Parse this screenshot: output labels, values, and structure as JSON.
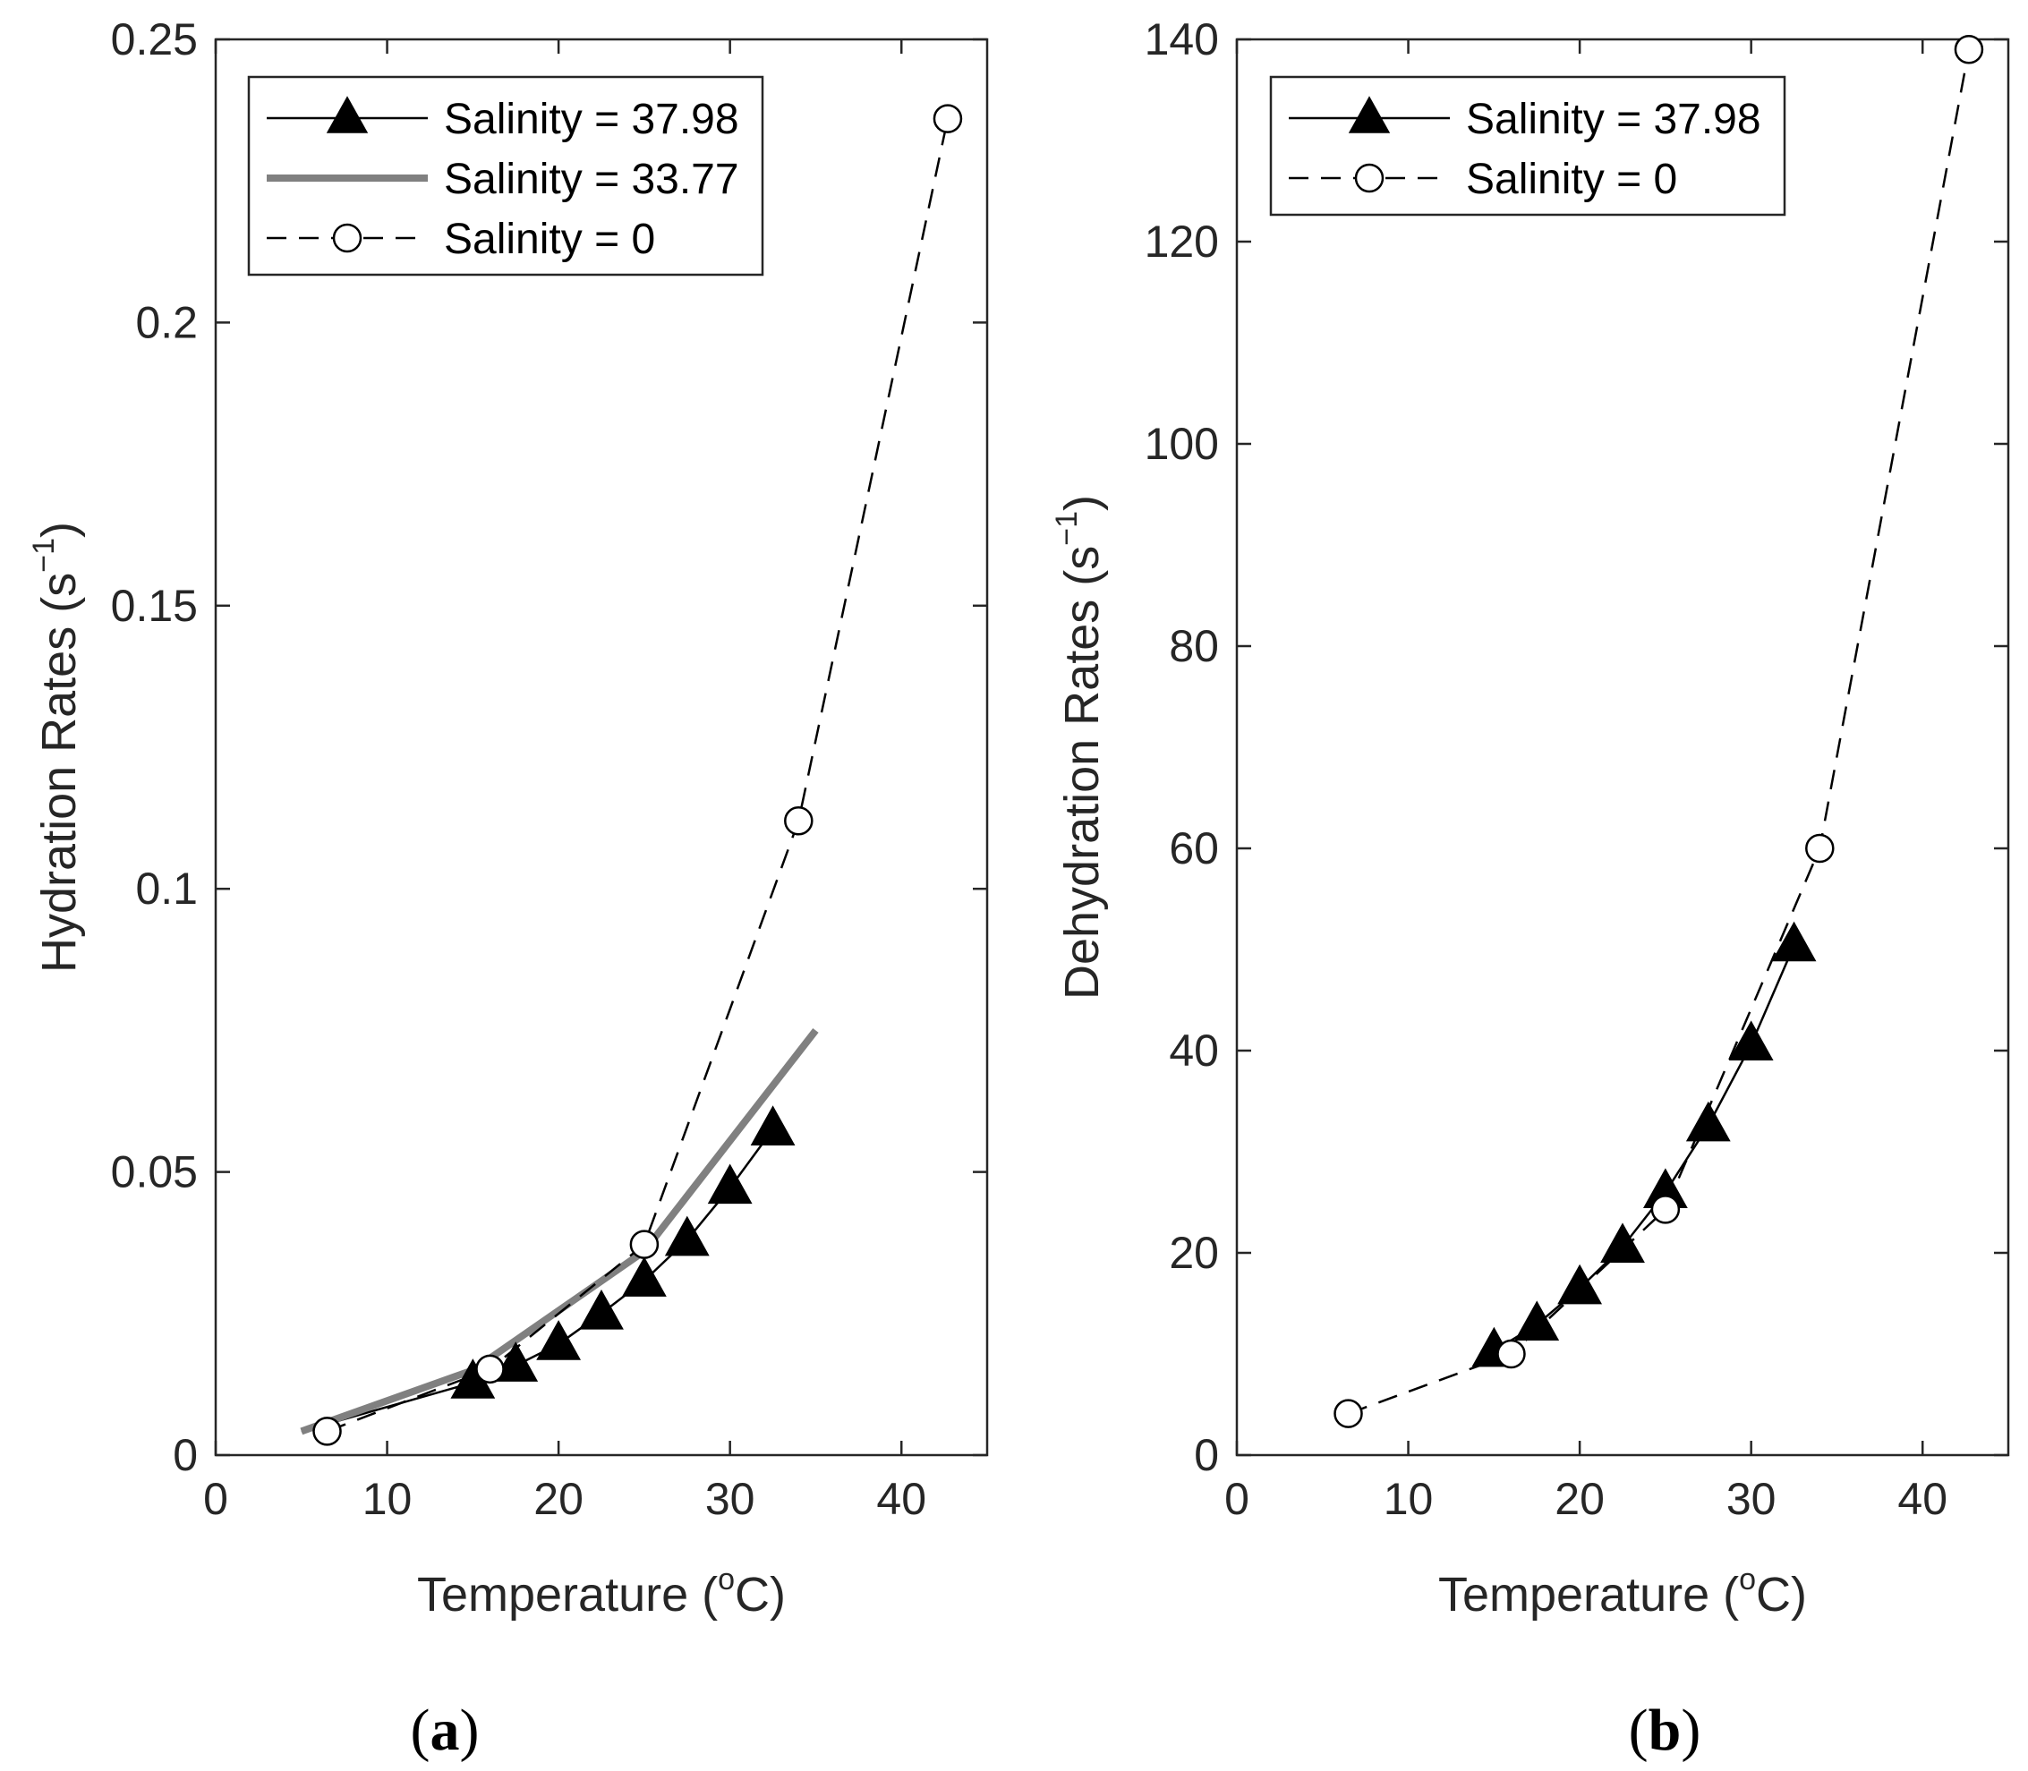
{
  "chart_data": [
    {
      "type": "line",
      "panel_label": "a",
      "xlabel": "Temperature",
      "xlabel_unit_pre": "(",
      "xlabel_unit_sup": "o",
      "xlabel_unit_post": "C)",
      "ylabel": "Hydration Rates",
      "ylabel_unit_pre": "(s",
      "ylabel_unit_sup": "−1",
      "ylabel_unit_post": ")",
      "xlim": [
        0,
        45
      ],
      "ylim": [
        0,
        0.25
      ],
      "xticks": [
        0,
        10,
        20,
        30,
        40
      ],
      "xtick_labels": [
        "0",
        "10",
        "20",
        "30",
        "40"
      ],
      "yticks": [
        0,
        0.05,
        0.1,
        0.15,
        0.2,
        0.25
      ],
      "ytick_labels": [
        "0",
        "0.05",
        "0.1",
        "0.15",
        "0.2",
        "0.25"
      ],
      "legend_position": "top-left",
      "series": [
        {
          "name": "Salinity = 37.98",
          "style": "solid",
          "marker": "filled-triangle",
          "color": "#000000",
          "x": [
            5,
            15,
            17.5,
            20,
            22.5,
            25,
            27.5,
            30,
            32.5
          ],
          "y": [
            0.0042,
            0.0128,
            0.0158,
            0.0196,
            0.025,
            0.0308,
            0.038,
            0.0472,
            0.0575
          ],
          "marker_indices": [
            1,
            2,
            3,
            4,
            5,
            6,
            7,
            8
          ]
        },
        {
          "name": "Salinity = 33.77",
          "style": "thick-gray",
          "marker": "none",
          "color": "#808080",
          "x": [
            5,
            15,
            25,
            35
          ],
          "y": [
            0.0042,
            0.015,
            0.036,
            0.075
          ]
        },
        {
          "name": "Salinity = 0",
          "style": "dashed",
          "marker": "open-circle",
          "color": "#000000",
          "x": [
            6.5,
            16,
            25,
            34,
            42.7
          ],
          "y": [
            0.0042,
            0.0152,
            0.0372,
            0.112,
            0.236
          ]
        }
      ]
    },
    {
      "type": "line",
      "panel_label": "b",
      "xlabel": "Temperature",
      "xlabel_unit_pre": "(",
      "xlabel_unit_sup": "o",
      "xlabel_unit_post": "C)",
      "ylabel": "Dehydration Rates",
      "ylabel_unit_pre": "(s",
      "ylabel_unit_sup": "−1",
      "ylabel_unit_post": ")",
      "xlim": [
        0,
        45
      ],
      "ylim": [
        0,
        140
      ],
      "xticks": [
        0,
        10,
        20,
        30,
        40
      ],
      "xtick_labels": [
        "0",
        "10",
        "20",
        "30",
        "40"
      ],
      "yticks": [
        0,
        20,
        40,
        60,
        80,
        100,
        120,
        140
      ],
      "ytick_labels": [
        "0",
        "20",
        "40",
        "60",
        "80",
        "100",
        "120",
        "140"
      ],
      "legend_position": "top-left",
      "series": [
        {
          "name": "Salinity = 37.98",
          "style": "solid",
          "marker": "filled-triangle",
          "color": "#000000",
          "x": [
            15,
            17.5,
            20,
            22.5,
            25,
            27.5,
            30,
            32.5
          ],
          "y": [
            10.3,
            12.9,
            16.5,
            20.6,
            26.0,
            32.6,
            40.6,
            50.4
          ]
        },
        {
          "name": "Salinity = 0",
          "style": "dashed",
          "marker": "open-circle",
          "color": "#000000",
          "x": [
            6.5,
            16,
            25,
            34,
            42.7
          ],
          "y": [
            4.1,
            10.0,
            24.3,
            60.0,
            139.0
          ]
        }
      ]
    }
  ]
}
